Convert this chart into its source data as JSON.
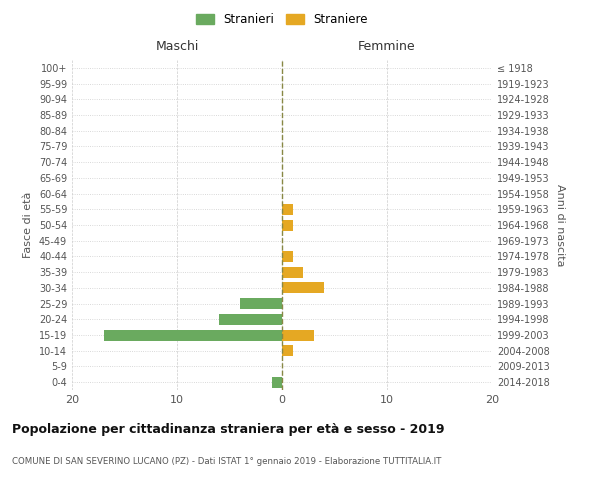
{
  "age_groups": [
    "100+",
    "95-99",
    "90-94",
    "85-89",
    "80-84",
    "75-79",
    "70-74",
    "65-69",
    "60-64",
    "55-59",
    "50-54",
    "45-49",
    "40-44",
    "35-39",
    "30-34",
    "25-29",
    "20-24",
    "15-19",
    "10-14",
    "5-9",
    "0-4"
  ],
  "birth_years": [
    "≤ 1918",
    "1919-1923",
    "1924-1928",
    "1929-1933",
    "1934-1938",
    "1939-1943",
    "1944-1948",
    "1949-1953",
    "1954-1958",
    "1959-1963",
    "1964-1968",
    "1969-1973",
    "1974-1978",
    "1979-1983",
    "1984-1988",
    "1989-1993",
    "1994-1998",
    "1999-2003",
    "2004-2008",
    "2009-2013",
    "2014-2018"
  ],
  "maschi_stranieri": [
    0,
    0,
    0,
    0,
    0,
    0,
    0,
    0,
    0,
    0,
    0,
    0,
    0,
    0,
    0,
    4,
    6,
    17,
    0,
    0,
    1
  ],
  "femmine_straniere": [
    0,
    0,
    0,
    0,
    0,
    0,
    0,
    0,
    0,
    1,
    1,
    0,
    1,
    2,
    4,
    0,
    0,
    3,
    1,
    0,
    0
  ],
  "color_maschi": "#6aaa5f",
  "color_femmine": "#e5a823",
  "xlim": 20,
  "title": "Popolazione per cittadinanza straniera per età e sesso - 2019",
  "subtitle": "COMUNE DI SAN SEVERINO LUCANO (PZ) - Dati ISTAT 1° gennaio 2019 - Elaborazione TUTTITALIA.IT",
  "ylabel_left": "Fasce di età",
  "ylabel_right": "Anni di nascita",
  "label_maschi": "Maschi",
  "label_femmine": "Femmine",
  "legend_stranieri": "Stranieri",
  "legend_straniere": "Straniere",
  "bg_color": "#ffffff",
  "grid_color": "#cccccc",
  "bar_height": 0.7,
  "dashed_line_color": "#888844"
}
